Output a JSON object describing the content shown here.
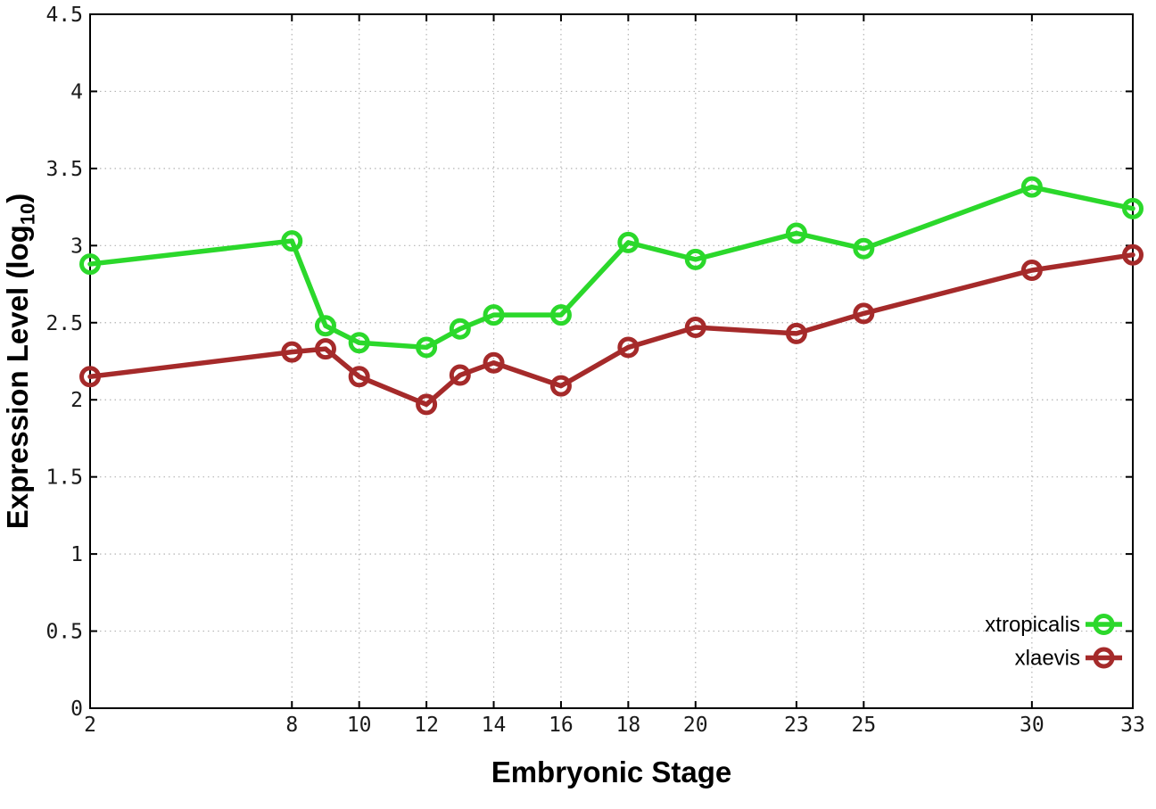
{
  "chart_data": {
    "type": "line",
    "title": "",
    "xlabel": "Embryonic Stage",
    "ylabel": "Expression Level (log10)",
    "ylabel_main": "Expression Level (log",
    "ylabel_sub": "10",
    "ylabel_close": ")",
    "x": [
      2,
      8,
      9,
      10,
      12,
      13,
      14,
      16,
      18,
      20,
      23,
      25,
      30,
      33
    ],
    "series": [
      {
        "name": "xtropicalis",
        "color": "#2bd82b",
        "values": [
          2.88,
          3.03,
          2.48,
          2.37,
          2.34,
          2.46,
          2.55,
          2.55,
          3.02,
          2.91,
          3.08,
          2.98,
          3.38,
          3.24
        ]
      },
      {
        "name": "xlaevis",
        "color": "#a52a2a",
        "values": [
          2.15,
          2.31,
          2.33,
          2.15,
          1.97,
          2.16,
          2.24,
          2.09,
          2.34,
          2.47,
          2.43,
          2.56,
          2.84,
          2.94
        ]
      }
    ],
    "xticks": [
      2,
      8,
      10,
      12,
      14,
      16,
      18,
      20,
      23,
      25,
      30,
      33
    ],
    "yticks": [
      0,
      0.5,
      1,
      1.5,
      2,
      2.5,
      3,
      3.5,
      4,
      4.5
    ],
    "xlim": [
      2,
      33
    ],
    "ylim": [
      0,
      4.5
    ],
    "grid": true,
    "legend_position": "bottom-right",
    "legend_entries": [
      "xtropicalis",
      "xlaevis"
    ]
  },
  "styles": {
    "background": "#ffffff",
    "border_color": "#000000",
    "grid_color": "#b4b4b4",
    "text_color": "#000000",
    "tick_label_color": "#1a1a1a",
    "series_green": "#2bd82b",
    "series_red": "#a52a2a"
  }
}
